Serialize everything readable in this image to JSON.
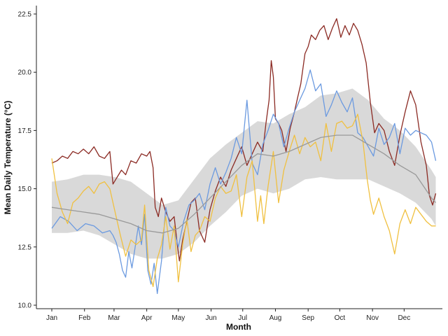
{
  "chart_data": {
    "type": "line",
    "title": "",
    "xlabel": "Month",
    "ylabel": "Mean Daily Temperature (°C)",
    "ylim": [
      10.0,
      22.5
    ],
    "yticks": [
      "10.0",
      "12.5",
      "15.0",
      "17.5",
      "20.0",
      "22.5"
    ],
    "xlim": [
      0,
      373
    ],
    "x_ticks": [
      {
        "day": 0,
        "label": "Jan"
      },
      {
        "day": 31,
        "label": "Feb"
      },
      {
        "day": 59,
        "label": "Mar"
      },
      {
        "day": 90,
        "label": "Apr"
      },
      {
        "day": 120,
        "label": "May"
      },
      {
        "day": 151,
        "label": "Jun"
      },
      {
        "day": 181,
        "label": "Jul"
      },
      {
        "day": 212,
        "label": "Aug"
      },
      {
        "day": 243,
        "label": "Sep"
      },
      {
        "day": 273,
        "label": "Oct"
      },
      {
        "day": 304,
        "label": "Nov"
      },
      {
        "day": 334,
        "label": "Dec"
      }
    ],
    "grid": false,
    "legend": "none",
    "x_unit": "day of year",
    "band": {
      "color": "#d9d9d9",
      "x": [
        0,
        15,
        30,
        45,
        60,
        75,
        90,
        105,
        120,
        135,
        150,
        165,
        180,
        195,
        210,
        225,
        240,
        255,
        270,
        285,
        300,
        315,
        330,
        345,
        360,
        364
      ],
      "lower": [
        13.1,
        13.1,
        13.2,
        13.0,
        12.6,
        12.2,
        12.0,
        12.0,
        12.2,
        12.7,
        13.4,
        14.0,
        14.7,
        15.0,
        14.8,
        15.0,
        15.4,
        15.5,
        15.4,
        15.4,
        15.4,
        15.1,
        14.8,
        14.4,
        13.7,
        13.4
      ],
      "upper": [
        15.3,
        15.4,
        15.6,
        15.6,
        15.5,
        15.3,
        14.8,
        14.3,
        14.5,
        15.4,
        16.3,
        16.9,
        17.4,
        17.9,
        17.8,
        18.2,
        18.5,
        19.0,
        19.1,
        19.3,
        18.8,
        18.0,
        17.5,
        16.8,
        15.8,
        15.5
      ]
    },
    "series": [
      {
        "color": "#8b2a23",
        "x": [
          0,
          5,
          10,
          15,
          20,
          25,
          30,
          35,
          40,
          45,
          50,
          55,
          58,
          62,
          66,
          70,
          75,
          80,
          85,
          90,
          93,
          96,
          98,
          101,
          104,
          108,
          112,
          116,
          119,
          121,
          124,
          128,
          132,
          136,
          140,
          145,
          150,
          155,
          160,
          165,
          170,
          175,
          180,
          185,
          190,
          195,
          200,
          203,
          206,
          208,
          210,
          212,
          215,
          218,
          222,
          226,
          230,
          233,
          236,
          240,
          243,
          246,
          250,
          254,
          258,
          262,
          266,
          270,
          274,
          278,
          282,
          286,
          290,
          294,
          298,
          302,
          306,
          310,
          315,
          320,
          325,
          330,
          335,
          340,
          345,
          350,
          355,
          358,
          361,
          364
        ],
        "values": [
          16.1,
          16.2,
          16.4,
          16.3,
          16.6,
          16.5,
          16.7,
          16.5,
          16.8,
          16.4,
          16.3,
          16.6,
          15.2,
          15.5,
          15.8,
          15.6,
          16.2,
          16.1,
          16.5,
          16.4,
          16.6,
          15.9,
          14.2,
          13.8,
          14.6,
          14.0,
          13.6,
          13.8,
          12.6,
          11.9,
          12.8,
          13.6,
          14.4,
          14.6,
          13.2,
          12.7,
          14.1,
          14.9,
          15.5,
          15.1,
          15.8,
          16.3,
          16.8,
          16.0,
          16.5,
          17.0,
          16.6,
          17.8,
          18.8,
          20.5,
          19.8,
          18.0,
          17.8,
          17.5,
          16.6,
          17.6,
          18.3,
          18.9,
          19.5,
          20.8,
          21.1,
          21.6,
          21.4,
          21.8,
          22.0,
          21.4,
          21.9,
          22.3,
          21.5,
          22.0,
          21.6,
          22.1,
          21.8,
          21.2,
          20.4,
          18.7,
          17.4,
          17.8,
          17.5,
          16.6,
          16.0,
          17.3,
          18.3,
          19.2,
          18.6,
          17.0,
          16.0,
          14.7,
          14.3,
          14.8
        ]
      },
      {
        "color": "#6b9ae0",
        "x": [
          0,
          8,
          16,
          24,
          32,
          40,
          48,
          55,
          58,
          61,
          64,
          67,
          70,
          73,
          76,
          79,
          82,
          85,
          88,
          91,
          94,
          97,
          100,
          104,
          108,
          112,
          116,
          120,
          125,
          130,
          135,
          140,
          145,
          150,
          155,
          160,
          165,
          170,
          175,
          180,
          185,
          190,
          195,
          200,
          205,
          210,
          215,
          220,
          225,
          230,
          235,
          240,
          245,
          250,
          255,
          260,
          265,
          270,
          275,
          280,
          285,
          290,
          295,
          300,
          305,
          310,
          315,
          320,
          325,
          330,
          335,
          340,
          345,
          350,
          355,
          360,
          364
        ],
        "values": [
          13.3,
          13.8,
          13.6,
          13.2,
          13.5,
          13.4,
          13.1,
          13.2,
          13.0,
          12.7,
          12.2,
          11.5,
          11.2,
          12.3,
          11.6,
          12.5,
          13.4,
          12.6,
          13.9,
          11.5,
          10.9,
          11.8,
          10.5,
          11.9,
          14.2,
          13.4,
          13.2,
          12.5,
          13.6,
          14.3,
          14.5,
          14.8,
          14.1,
          15.2,
          15.9,
          15.2,
          15.7,
          16.3,
          17.2,
          16.5,
          18.8,
          16.1,
          15.6,
          16.9,
          17.5,
          18.2,
          17.8,
          16.8,
          17.6,
          18.3,
          18.8,
          19.3,
          20.1,
          19.2,
          19.5,
          18.1,
          18.6,
          19.2,
          18.7,
          18.3,
          18.9,
          17.4,
          17.2,
          16.8,
          16.4,
          17.6,
          16.9,
          17.2,
          17.8,
          16.5,
          17.6,
          17.3,
          17.5,
          17.4,
          17.3,
          17.0,
          16.2
        ]
      },
      {
        "color": "#f0c040",
        "x": [
          0,
          5,
          10,
          15,
          20,
          25,
          30,
          35,
          40,
          45,
          50,
          55,
          60,
          65,
          70,
          75,
          80,
          85,
          88,
          92,
          96,
          100,
          104,
          108,
          112,
          116,
          120,
          124,
          128,
          132,
          136,
          140,
          145,
          150,
          155,
          160,
          165,
          170,
          175,
          180,
          185,
          190,
          195,
          198,
          201,
          205,
          210,
          215,
          220,
          225,
          230,
          235,
          240,
          245,
          250,
          255,
          260,
          265,
          270,
          275,
          280,
          285,
          290,
          295,
          299,
          302,
          305,
          310,
          315,
          320,
          325,
          330,
          335,
          340,
          345,
          350,
          355,
          360,
          364
        ],
        "values": [
          16.3,
          14.8,
          14.0,
          13.5,
          14.4,
          14.6,
          14.9,
          15.1,
          14.8,
          15.2,
          15.3,
          15.0,
          14.0,
          13.0,
          12.1,
          12.8,
          12.6,
          12.8,
          14.3,
          11.5,
          10.8,
          12.0,
          12.6,
          13.8,
          12.4,
          13.4,
          11.0,
          12.6,
          13.7,
          12.3,
          13.0,
          13.2,
          13.8,
          13.6,
          14.6,
          15.1,
          14.8,
          14.9,
          15.6,
          13.8,
          15.5,
          16.2,
          13.6,
          14.7,
          13.5,
          15.1,
          16.6,
          14.4,
          15.8,
          16.6,
          17.3,
          16.5,
          17.2,
          16.8,
          17.0,
          16.2,
          17.8,
          16.6,
          17.8,
          17.9,
          17.6,
          17.7,
          18.2,
          17.0,
          15.4,
          14.5,
          13.9,
          14.6,
          13.8,
          13.2,
          12.2,
          13.5,
          14.1,
          13.5,
          14.2,
          13.9,
          13.6,
          13.4,
          13.4
        ]
      },
      {
        "color": "#999999",
        "x": [
          0,
          15,
          30,
          45,
          60,
          75,
          90,
          105,
          120,
          135,
          150,
          165,
          180,
          195,
          210,
          225,
          240,
          255,
          270,
          285,
          300,
          315,
          330,
          345,
          360,
          364
        ],
        "values": [
          14.2,
          14.1,
          14.0,
          13.9,
          13.7,
          13.5,
          13.2,
          13.1,
          13.3,
          13.9,
          14.6,
          15.3,
          16.0,
          16.5,
          16.4,
          16.6,
          16.9,
          17.2,
          17.3,
          17.3,
          16.9,
          16.5,
          16.0,
          15.6,
          14.6,
          14.4
        ]
      }
    ]
  }
}
